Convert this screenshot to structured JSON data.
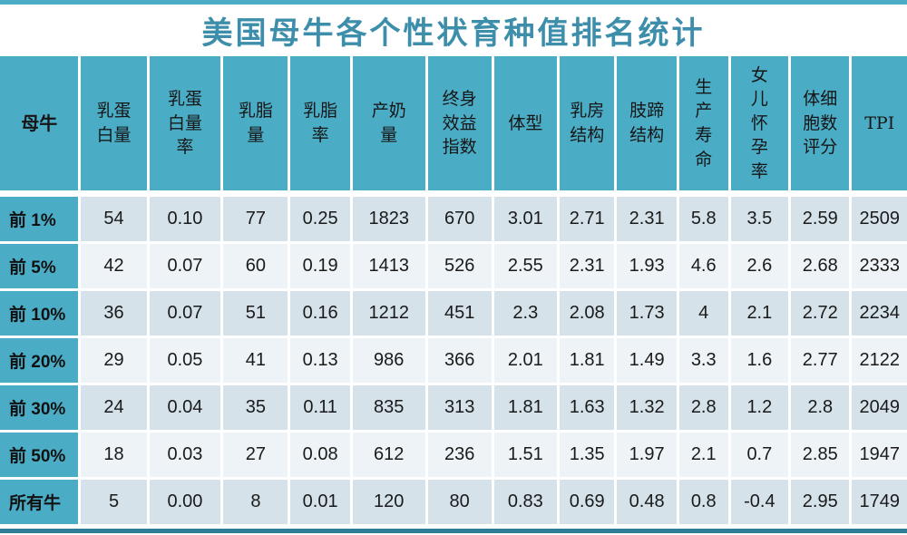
{
  "title": "美国母牛各个性状育种值排名统计",
  "colors": {
    "accent_teal": "#4BACC6",
    "title_teal": "#3D8EAB",
    "band_dark": "#D5E2EA",
    "band_light": "#EDF3F7",
    "bottom_rule": "#2E7C95",
    "top_rule": "#4BACC6"
  },
  "table": {
    "columns": [
      {
        "label": "母牛",
        "lines": [
          "母牛"
        ]
      },
      {
        "label": "乳蛋白量",
        "lines": [
          "乳蛋",
          "白量"
        ]
      },
      {
        "label": "乳蛋白量率",
        "lines": [
          "乳蛋",
          "白量",
          "率"
        ]
      },
      {
        "label": "乳脂量",
        "lines": [
          "乳脂",
          "量"
        ]
      },
      {
        "label": "乳脂率",
        "lines": [
          "乳脂",
          "率"
        ]
      },
      {
        "label": "产奶量",
        "lines": [
          "产奶",
          "量"
        ]
      },
      {
        "label": "终身效益指数",
        "lines": [
          "终身",
          "效益",
          "指数"
        ]
      },
      {
        "label": "体型",
        "lines": [
          "体型"
        ]
      },
      {
        "label": "乳房结构",
        "lines": [
          "乳房",
          "结构"
        ]
      },
      {
        "label": "肢蹄结构",
        "lines": [
          "肢蹄",
          "结构"
        ]
      },
      {
        "label": "生产寿命",
        "lines": [
          "生",
          "产",
          "寿",
          "命"
        ]
      },
      {
        "label": "女儿怀孕率",
        "lines": [
          "女",
          "儿",
          "怀",
          "孕",
          "率"
        ]
      },
      {
        "label": "体细胞数评分",
        "lines": [
          "体细",
          "胞数",
          "评分"
        ]
      },
      {
        "label": "TPI",
        "lines": [
          "TPI"
        ]
      }
    ],
    "rows": [
      {
        "label": "前 1%",
        "values": [
          "54",
          "0.10",
          "77",
          "0.25",
          "1823",
          "670",
          "3.01",
          "2.71",
          "2.31",
          "5.8",
          "3.5",
          "2.59",
          "2509"
        ]
      },
      {
        "label": "前 5%",
        "values": [
          "42",
          "0.07",
          "60",
          "0.19",
          "1413",
          "526",
          "2.55",
          "2.31",
          "1.93",
          "4.6",
          "2.6",
          "2.68",
          "2333"
        ]
      },
      {
        "label": "前 10%",
        "values": [
          "36",
          "0.07",
          "51",
          "0.16",
          "1212",
          "451",
          "2.3",
          "2.08",
          "1.73",
          "4",
          "2.1",
          "2.72",
          "2234"
        ]
      },
      {
        "label": "前 20%",
        "values": [
          "29",
          "0.05",
          "41",
          "0.13",
          "986",
          "366",
          "2.01",
          "1.81",
          "1.49",
          "3.3",
          "1.6",
          "2.77",
          "2122"
        ]
      },
      {
        "label": "前 30%",
        "values": [
          "24",
          "0.04",
          "35",
          "0.11",
          "835",
          "313",
          "1.81",
          "1.63",
          "1.32",
          "2.8",
          "1.2",
          "2.8",
          "2049"
        ]
      },
      {
        "label": "前 50%",
        "values": [
          "18",
          "0.03",
          "27",
          "0.08",
          "612",
          "236",
          "1.51",
          "1.35",
          "1.97",
          "2.1",
          "0.7",
          "2.85",
          "1947"
        ]
      },
      {
        "label": "所有牛",
        "values": [
          "5",
          "0.00",
          "8",
          "0.01",
          "120",
          "80",
          "0.83",
          "0.69",
          "0.48",
          "0.8",
          "-0.4",
          "2.95",
          "1749"
        ]
      }
    ]
  },
  "chart_data": {
    "type": "table",
    "title": "美国母牛各个性状育种值排名统计",
    "columns": [
      "母牛",
      "乳蛋白量",
      "乳蛋白量率",
      "乳脂量",
      "乳脂率",
      "产奶量",
      "终身效益指数",
      "体型",
      "乳房结构",
      "肢蹄结构",
      "生产寿命",
      "女儿怀孕率",
      "体细胞数评分",
      "TPI"
    ],
    "rows": [
      [
        "前 1%",
        54,
        0.1,
        77,
        0.25,
        1823,
        670,
        3.01,
        2.71,
        2.31,
        5.8,
        3.5,
        2.59,
        2509
      ],
      [
        "前 5%",
        42,
        0.07,
        60,
        0.19,
        1413,
        526,
        2.55,
        2.31,
        1.93,
        4.6,
        2.6,
        2.68,
        2333
      ],
      [
        "前 10%",
        36,
        0.07,
        51,
        0.16,
        1212,
        451,
        2.3,
        2.08,
        1.73,
        4,
        2.1,
        2.72,
        2234
      ],
      [
        "前 20%",
        29,
        0.05,
        41,
        0.13,
        986,
        366,
        2.01,
        1.81,
        1.49,
        3.3,
        1.6,
        2.77,
        2122
      ],
      [
        "前 30%",
        24,
        0.04,
        35,
        0.11,
        835,
        313,
        1.81,
        1.63,
        1.32,
        2.8,
        1.2,
        2.8,
        2049
      ],
      [
        "前 50%",
        18,
        0.03,
        27,
        0.08,
        612,
        236,
        1.51,
        1.35,
        1.97,
        2.1,
        0.7,
        2.85,
        1947
      ],
      [
        "所有牛",
        5,
        0.0,
        8,
        0.01,
        120,
        80,
        0.83,
        0.69,
        0.48,
        0.8,
        -0.4,
        2.95,
        1749
      ]
    ]
  }
}
